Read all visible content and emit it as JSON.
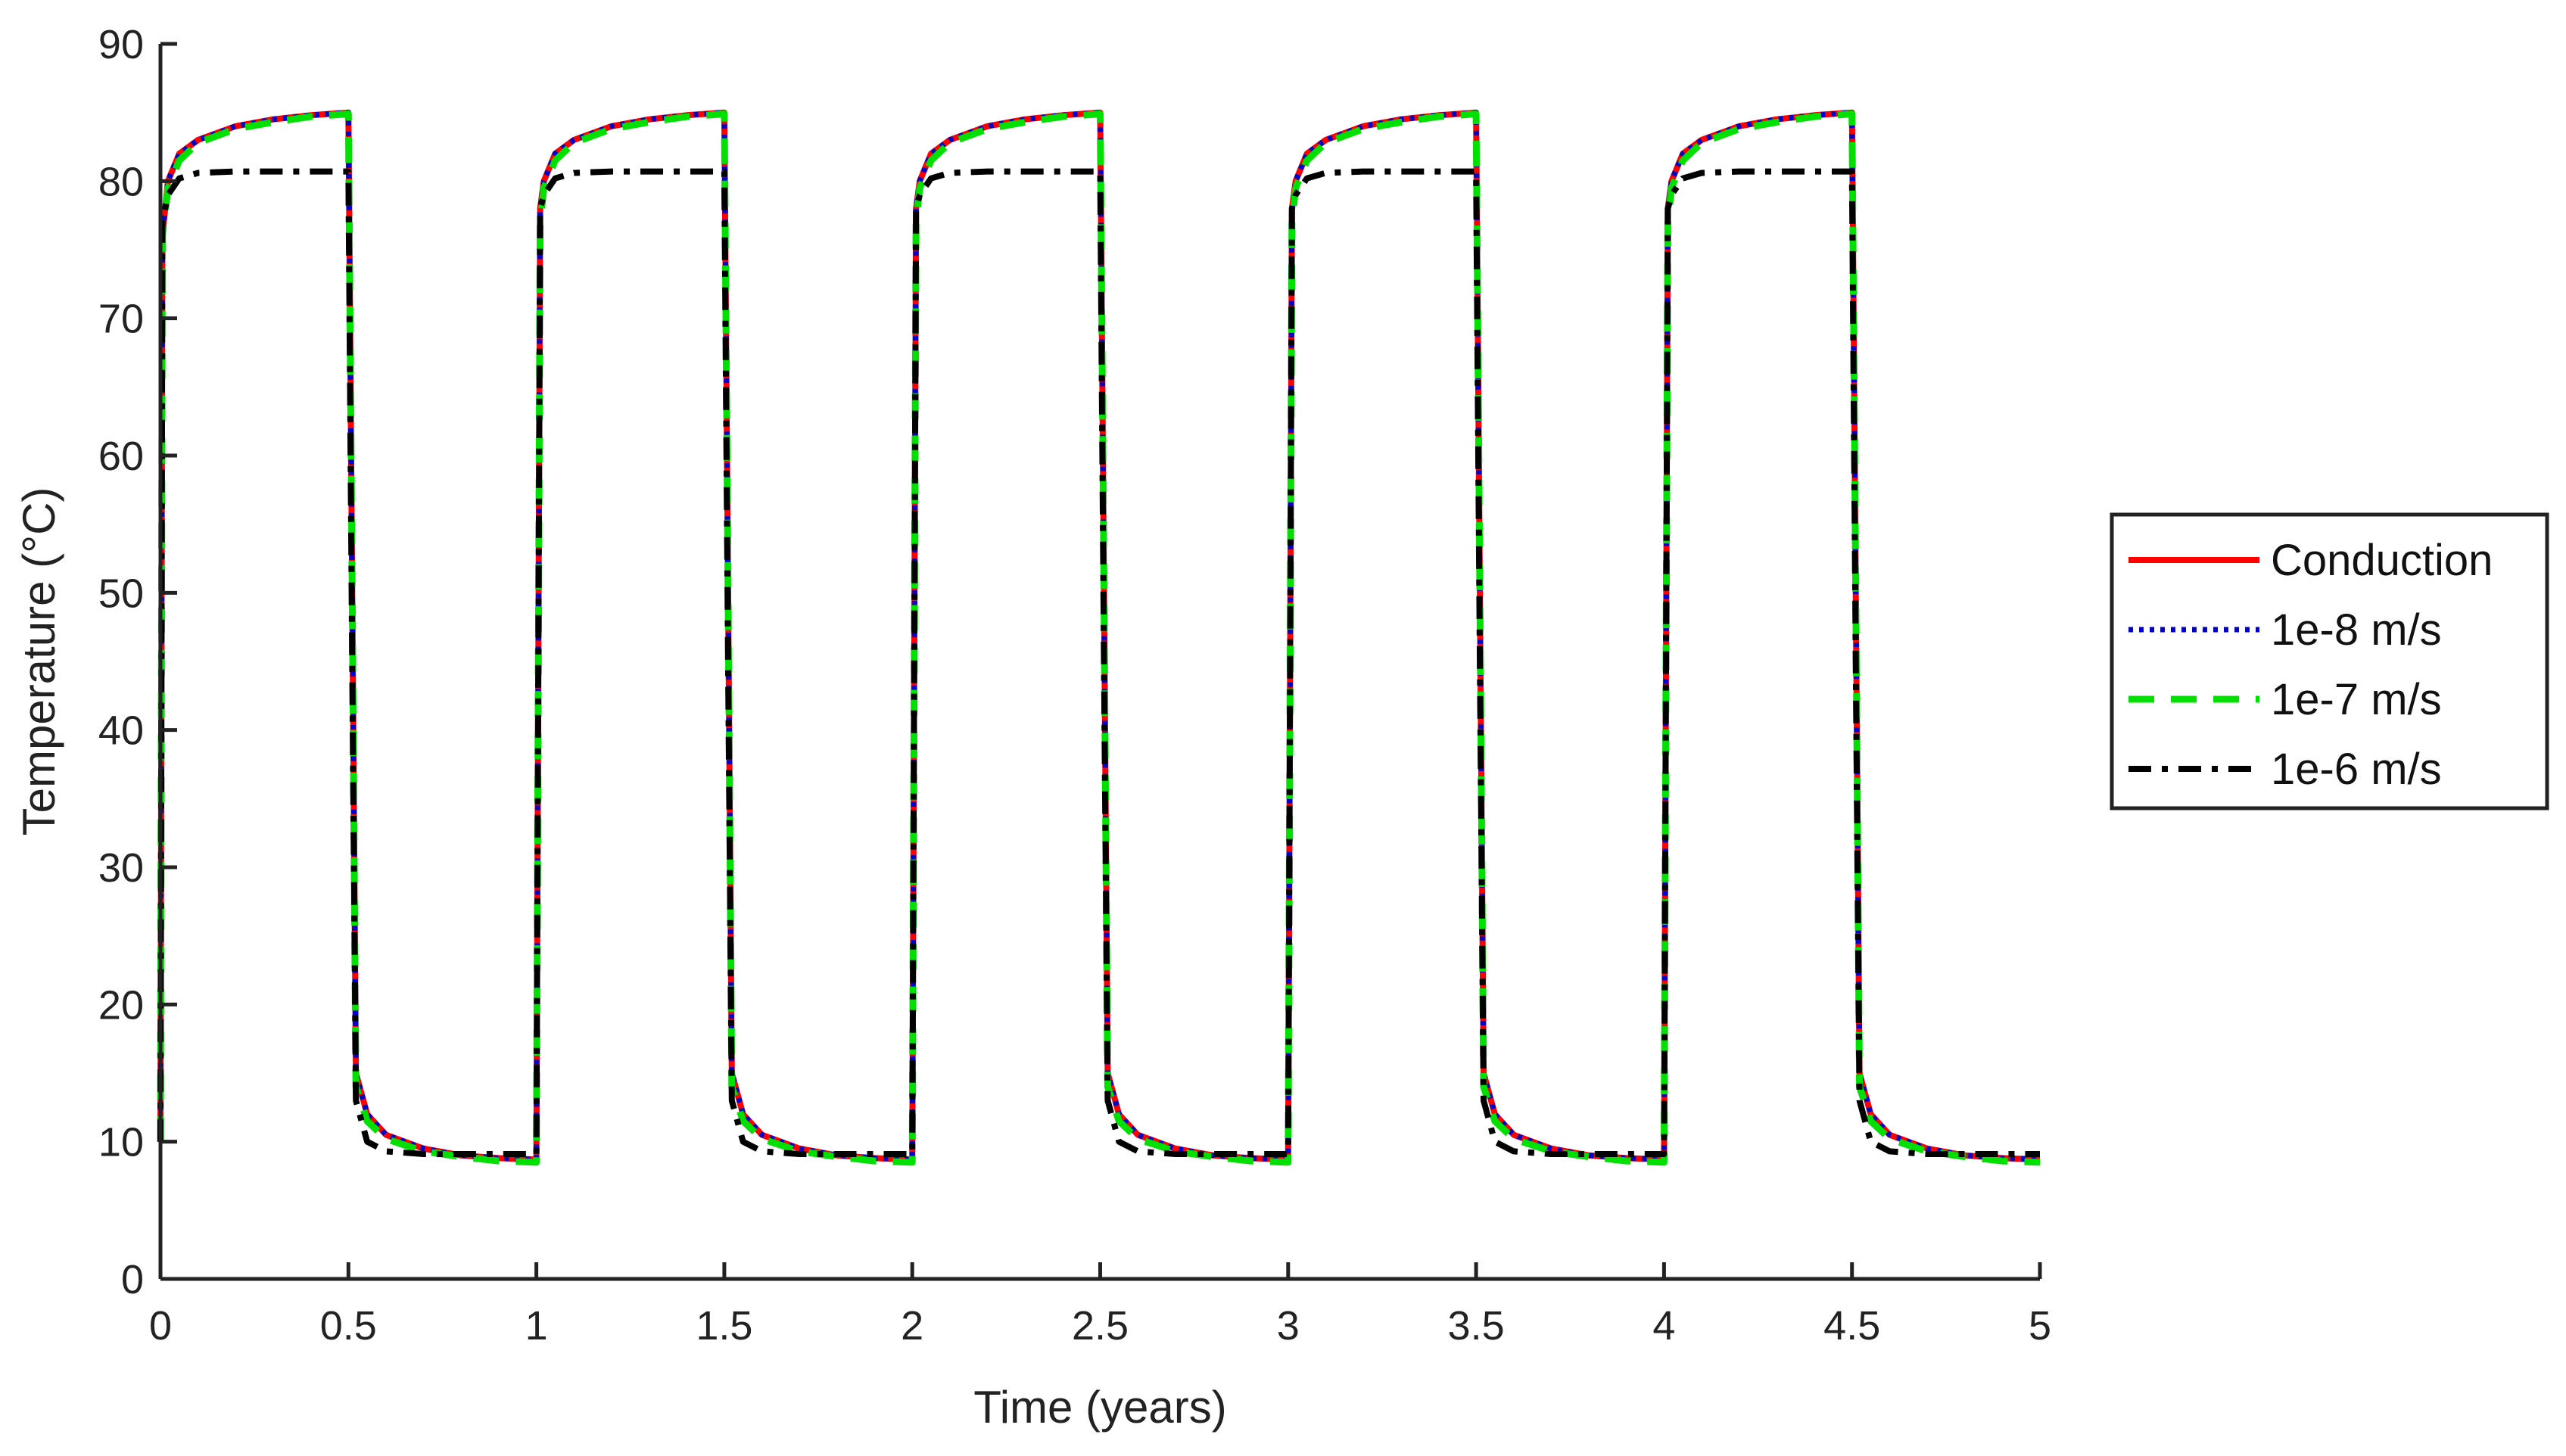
{
  "chart_data": {
    "type": "line",
    "title": "",
    "xlabel": "Time  (years)",
    "ylabel": "Temperature  (°C)",
    "xlim": [
      0,
      5
    ],
    "ylim": [
      0,
      90
    ],
    "xticks": [
      0,
      0.5,
      1,
      1.5,
      2,
      2.5,
      3,
      3.5,
      4,
      4.5,
      5
    ],
    "xtick_labels": [
      "0",
      "0.5",
      "1",
      "1.5",
      "2",
      "2.5",
      "3",
      "3.5",
      "4",
      "4.5",
      "5"
    ],
    "yticks": [
      0,
      10,
      20,
      30,
      40,
      50,
      60,
      70,
      80,
      90
    ],
    "ytick_labels": [
      "0",
      "10",
      "20",
      "30",
      "40",
      "50",
      "60",
      "70",
      "80",
      "90"
    ],
    "grid": false,
    "legend_position": "outside-right",
    "series": [
      {
        "name": "Conduction",
        "color": "#ff0000",
        "style": "solid",
        "x": [
          0,
          0.005,
          0.02,
          0.05,
          0.1,
          0.2,
          0.3,
          0.4,
          0.5,
          0.51,
          0.52,
          0.55,
          0.6,
          0.7,
          0.8,
          0.9,
          1.0,
          1.01,
          1.02,
          1.05,
          1.1,
          1.2,
          1.3,
          1.4,
          1.5,
          1.51,
          1.52,
          1.55,
          1.6,
          1.7,
          1.8,
          1.9,
          2.0,
          2.01,
          2.02,
          2.05,
          2.1,
          2.2,
          2.3,
          2.4,
          2.5,
          2.51,
          2.52,
          2.55,
          2.6,
          2.7,
          2.8,
          2.9,
          3.0,
          3.01,
          3.02,
          3.05,
          3.1,
          3.2,
          3.3,
          3.4,
          3.5,
          3.51,
          3.52,
          3.55,
          3.6,
          3.7,
          3.8,
          3.9,
          4.0,
          4.01,
          4.02,
          4.05,
          4.1,
          4.2,
          4.3,
          4.4,
          4.5,
          4.51,
          4.52,
          4.55,
          4.6,
          4.7,
          4.8,
          4.9,
          5.0
        ],
        "y": [
          10,
          76,
          80,
          82,
          83,
          84,
          84.5,
          84.8,
          85,
          50,
          15,
          12,
          10.5,
          9.5,
          9,
          8.8,
          8.7,
          78,
          80,
          82,
          83,
          84,
          84.5,
          84.8,
          85,
          50,
          15,
          12,
          10.5,
          9.5,
          9,
          8.8,
          8.7,
          78,
          80,
          82,
          83,
          84,
          84.5,
          84.8,
          85,
          50,
          15,
          12,
          10.5,
          9.5,
          9,
          8.8,
          8.7,
          78,
          80,
          82,
          83,
          84,
          84.5,
          84.8,
          85,
          50,
          15,
          12,
          10.5,
          9.5,
          9,
          8.8,
          8.7,
          78,
          80,
          82,
          83,
          84,
          84.5,
          84.8,
          85,
          50,
          15,
          12,
          10.5,
          9.5,
          9,
          8.8,
          8.7
        ]
      },
      {
        "name": "1e-8 m/s",
        "color": "#0000c8",
        "style": "dotted",
        "x": [
          0,
          0.005,
          0.02,
          0.05,
          0.1,
          0.2,
          0.3,
          0.4,
          0.5,
          0.51,
          0.52,
          0.55,
          0.6,
          0.7,
          0.8,
          0.9,
          1.0,
          1.01,
          1.02,
          1.05,
          1.1,
          1.2,
          1.3,
          1.4,
          1.5,
          1.51,
          1.52,
          1.55,
          1.6,
          1.7,
          1.8,
          1.9,
          2.0,
          2.01,
          2.02,
          2.05,
          2.1,
          2.2,
          2.3,
          2.4,
          2.5,
          2.51,
          2.52,
          2.55,
          2.6,
          2.7,
          2.8,
          2.9,
          3.0,
          3.01,
          3.02,
          3.05,
          3.1,
          3.2,
          3.3,
          3.4,
          3.5,
          3.51,
          3.52,
          3.55,
          3.6,
          3.7,
          3.8,
          3.9,
          4.0,
          4.01,
          4.02,
          4.05,
          4.1,
          4.2,
          4.3,
          4.4,
          4.5,
          4.51,
          4.52,
          4.55,
          4.6,
          4.7,
          4.8,
          4.9,
          5.0
        ],
        "y": [
          10,
          76,
          80,
          82,
          83,
          84,
          84.5,
          84.8,
          85,
          50,
          15,
          12,
          10.5,
          9.5,
          9,
          8.8,
          8.7,
          78,
          80,
          82,
          83,
          84,
          84.5,
          84.8,
          85,
          50,
          15,
          12,
          10.5,
          9.5,
          9,
          8.8,
          8.7,
          78,
          80,
          82,
          83,
          84,
          84.5,
          84.8,
          85,
          50,
          15,
          12,
          10.5,
          9.5,
          9,
          8.8,
          8.7,
          78,
          80,
          82,
          83,
          84,
          84.5,
          84.8,
          85,
          50,
          15,
          12,
          10.5,
          9.5,
          9,
          8.8,
          8.7,
          78,
          80,
          82,
          83,
          84,
          84.5,
          84.8,
          85,
          50,
          15,
          12,
          10.5,
          9.5,
          9,
          8.8,
          8.7
        ]
      },
      {
        "name": "1e-7 m/s",
        "color": "#00e000",
        "style": "dashed",
        "x": [
          0,
          0.005,
          0.02,
          0.05,
          0.1,
          0.2,
          0.3,
          0.4,
          0.5,
          0.51,
          0.52,
          0.55,
          0.6,
          0.7,
          0.8,
          0.9,
          1.0,
          1.01,
          1.02,
          1.05,
          1.1,
          1.2,
          1.3,
          1.4,
          1.5,
          1.51,
          1.52,
          1.55,
          1.6,
          1.7,
          1.8,
          1.9,
          2.0,
          2.01,
          2.02,
          2.05,
          2.1,
          2.2,
          2.3,
          2.4,
          2.5,
          2.51,
          2.52,
          2.55,
          2.6,
          2.7,
          2.8,
          2.9,
          3.0,
          3.01,
          3.02,
          3.05,
          3.1,
          3.2,
          3.3,
          3.4,
          3.5,
          3.51,
          3.52,
          3.55,
          3.6,
          3.7,
          3.8,
          3.9,
          4.0,
          4.01,
          4.02,
          4.05,
          4.1,
          4.2,
          4.3,
          4.4,
          4.5,
          4.51,
          4.52,
          4.55,
          4.6,
          4.7,
          4.8,
          4.9,
          5.0
        ],
        "y": [
          10,
          76,
          79.5,
          81.5,
          82.8,
          83.8,
          84.3,
          84.7,
          84.9,
          50,
          14,
          11.5,
          10.2,
          9.3,
          8.9,
          8.6,
          8.5,
          77,
          79.5,
          81.5,
          82.8,
          83.8,
          84.3,
          84.7,
          84.9,
          50,
          14,
          11.5,
          10.2,
          9.3,
          8.9,
          8.6,
          8.5,
          77,
          79.5,
          81.5,
          82.8,
          83.8,
          84.3,
          84.7,
          84.9,
          50,
          14,
          11.5,
          10.2,
          9.3,
          8.9,
          8.6,
          8.5,
          77,
          79.5,
          81.5,
          82.8,
          83.8,
          84.3,
          84.7,
          84.9,
          50,
          14,
          11.5,
          10.2,
          9.3,
          8.9,
          8.6,
          8.5,
          77,
          79.5,
          81.5,
          82.8,
          83.8,
          84.3,
          84.7,
          84.9,
          50,
          14,
          11.5,
          10.2,
          9.3,
          8.9,
          8.6,
          8.5
        ]
      },
      {
        "name": "1e-6 m/s",
        "color": "#000000",
        "style": "dashdot",
        "x": [
          0,
          0.005,
          0.02,
          0.05,
          0.1,
          0.2,
          0.3,
          0.4,
          0.5,
          0.51,
          0.52,
          0.55,
          0.6,
          0.7,
          0.8,
          0.9,
          1.0,
          1.01,
          1.02,
          1.05,
          1.1,
          1.2,
          1.3,
          1.4,
          1.5,
          1.51,
          1.52,
          1.55,
          1.6,
          1.7,
          1.8,
          1.9,
          2.0,
          2.01,
          2.02,
          2.05,
          2.1,
          2.2,
          2.3,
          2.4,
          2.5,
          2.51,
          2.52,
          2.55,
          2.6,
          2.7,
          2.8,
          2.9,
          3.0,
          3.01,
          3.02,
          3.05,
          3.1,
          3.2,
          3.3,
          3.4,
          3.5,
          3.51,
          3.52,
          3.55,
          3.6,
          3.7,
          3.8,
          3.9,
          4.0,
          4.01,
          4.02,
          4.05,
          4.1,
          4.2,
          4.3,
          4.4,
          4.5,
          4.51,
          4.52,
          4.55,
          4.6,
          4.7,
          4.8,
          4.9,
          5.0
        ],
        "y": [
          10,
          77,
          79,
          80.2,
          80.6,
          80.7,
          80.7,
          80.7,
          80.7,
          45,
          13,
          10,
          9.3,
          9.1,
          9.1,
          9.1,
          9.1,
          78,
          79,
          80.2,
          80.6,
          80.7,
          80.7,
          80.7,
          80.7,
          45,
          13,
          10,
          9.3,
          9.1,
          9.1,
          9.1,
          9.1,
          78,
          79,
          80.2,
          80.6,
          80.7,
          80.7,
          80.7,
          80.7,
          45,
          13,
          10,
          9.3,
          9.1,
          9.1,
          9.1,
          9.1,
          78,
          79,
          80.2,
          80.6,
          80.7,
          80.7,
          80.7,
          80.7,
          45,
          13,
          10,
          9.3,
          9.1,
          9.1,
          9.1,
          9.1,
          78,
          79,
          80.2,
          80.6,
          80.7,
          80.7,
          80.7,
          80.7,
          45,
          13,
          10,
          9.3,
          9.1,
          9.1,
          9.1,
          9.1
        ]
      }
    ]
  }
}
